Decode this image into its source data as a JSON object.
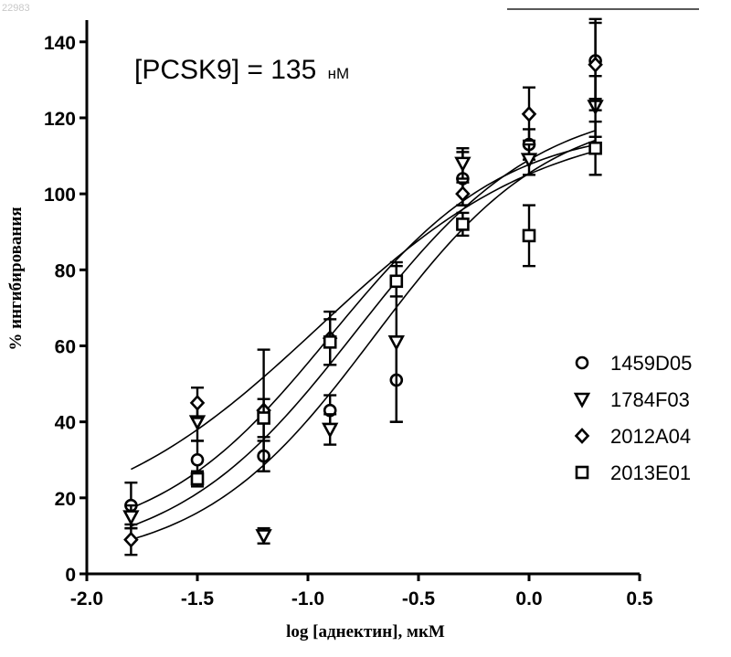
{
  "corner_id": "22983",
  "chart_data": {
    "type": "scatter",
    "title": "",
    "annotation": {
      "text": "[PCSK9] = 135",
      "unit": "нМ"
    },
    "xlabel": "log [аднектин], мкМ",
    "ylabel": "% ингибирования",
    "xlim": [
      -2.0,
      0.5
    ],
    "ylim": [
      0,
      145
    ],
    "xticks": [
      -2.0,
      -1.5,
      -1.0,
      -0.5,
      0.0,
      0.5
    ],
    "xtick_labels": [
      "-2.0",
      "-1.5",
      "-1.0",
      "-0.5",
      "0.0",
      "0.5"
    ],
    "yticks": [
      0,
      20,
      40,
      60,
      80,
      100,
      120,
      140
    ],
    "ytick_labels": [
      "0",
      "20",
      "40",
      "60",
      "80",
      "100",
      "120",
      "140"
    ],
    "grid": false,
    "legend": "right",
    "series": [
      {
        "name": "1459D05",
        "marker": "circle",
        "x": [
          -1.8,
          -1.5,
          -1.2,
          -0.9,
          -0.6,
          -0.3,
          0.0,
          0.3
        ],
        "y": [
          18,
          30,
          31,
          43,
          51,
          104,
          113,
          135
        ],
        "err": [
          6,
          5,
          4,
          4,
          11,
          7,
          4,
          10
        ],
        "fit": {
          "bottom": 2,
          "top": 123,
          "logec50": -0.7,
          "hill": 1.1
        }
      },
      {
        "name": "1784F03",
        "marker": "triangle-down",
        "x": [
          -1.8,
          -1.5,
          -1.2,
          -0.9,
          -0.6,
          -0.3,
          0.0,
          0.3
        ],
        "y": [
          15,
          40,
          10,
          38,
          61,
          108,
          109,
          123
        ],
        "err": [
          3,
          5,
          2,
          4,
          21,
          4,
          4,
          8
        ],
        "fit": {
          "bottom": 3,
          "top": 125,
          "logec50": -0.78,
          "hill": 1.05
        }
      },
      {
        "name": "2012A04",
        "marker": "diamond",
        "x": [
          -1.8,
          -1.5,
          -1.2,
          -0.9,
          -0.3,
          0.0,
          0.3
        ],
        "y": [
          9,
          45,
          43,
          62,
          100,
          121,
          134
        ],
        "err": [
          4,
          4,
          16,
          7,
          3,
          7,
          12
        ],
        "fit": {
          "bottom": 7,
          "top": 118,
          "logec50": -0.9,
          "hill": 1.1
        }
      },
      {
        "name": "2013E01",
        "marker": "square",
        "x": [
          -1.5,
          -1.2,
          -0.9,
          -0.6,
          -0.3,
          0.0,
          0.3
        ],
        "y": [
          25,
          41,
          61,
          77,
          92,
          89,
          112
        ],
        "err": [
          2,
          5,
          6,
          4,
          3,
          8,
          7
        ],
        "fit": {
          "bottom": 10,
          "top": 120,
          "logec50": -0.95,
          "hill": 0.85
        }
      }
    ]
  }
}
